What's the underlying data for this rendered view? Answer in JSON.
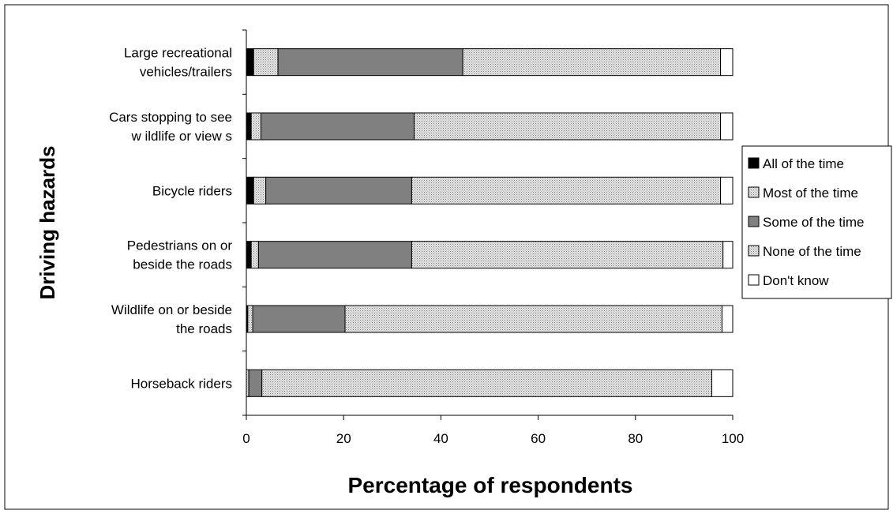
{
  "chart_data": {
    "type": "bar",
    "orientation": "horizontal",
    "stacked": true,
    "xlabel": "Percentage of respondents",
    "ylabel": "Driving hazards",
    "xlim": [
      0,
      100
    ],
    "x_ticks": [
      "0",
      "20",
      "40",
      "60",
      "80",
      "100"
    ],
    "categories": [
      [
        "Large recreational",
        "vehicles/trailers"
      ],
      [
        "Cars stopping to see",
        "w ildlife or view s"
      ],
      [
        "Bicycle riders"
      ],
      [
        "Pedestrians on or",
        "beside the roads"
      ],
      [
        "Wildlife on or beside",
        "the roads"
      ],
      [
        "Horseback riders"
      ]
    ],
    "series": [
      {
        "name": "All of the time",
        "color": "#000000",
        "values": [
          1.5,
          1,
          1.5,
          1,
          0.3,
          0
        ]
      },
      {
        "name": "Most of the time",
        "color": "#cccccc",
        "values": [
          5,
          2,
          2.5,
          1.5,
          1,
          0.5
        ]
      },
      {
        "name": "Some of the time",
        "color": "#808080",
        "values": [
          38,
          31.5,
          30,
          31.5,
          19,
          2.7
        ]
      },
      {
        "name": "None of the time",
        "color": "#cccccc",
        "values": [
          53,
          63,
          63.5,
          64,
          77.5,
          92.5
        ]
      },
      {
        "name": "Don't know",
        "color": "#ffffff",
        "values": [
          2.5,
          2.5,
          2.5,
          2,
          2.2,
          4.3
        ]
      }
    ],
    "legend": "right",
    "grid": false
  }
}
